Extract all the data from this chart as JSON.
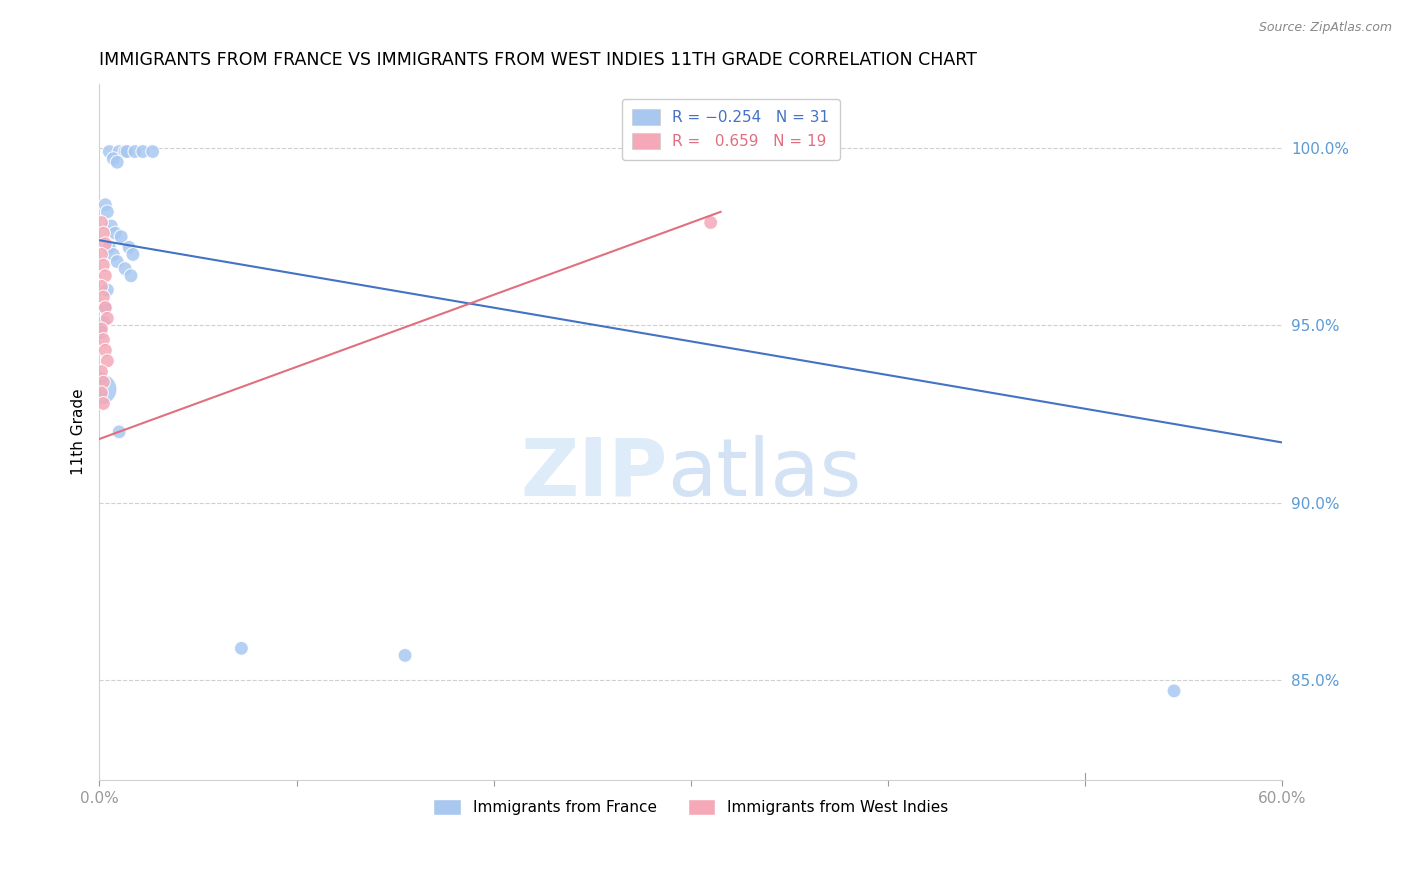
{
  "title": "IMMIGRANTS FROM FRANCE VS IMMIGRANTS FROM WEST INDIES 11TH GRADE CORRELATION CHART",
  "source": "Source: ZipAtlas.com",
  "ylabel": "11th Grade",
  "yticks_labels": [
    "100.0%",
    "95.0%",
    "90.0%",
    "85.0%"
  ],
  "ytick_vals": [
    1.0,
    0.95,
    0.9,
    0.85
  ],
  "xlim": [
    0.0,
    0.6
  ],
  "ylim": [
    0.822,
    1.018
  ],
  "blue_color": "#a8c8f0",
  "pink_color": "#f4a8b8",
  "blue_line_color": "#4472c4",
  "pink_line_color": "#e07080",
  "blue_line": [
    [
      0.0,
      0.974
    ],
    [
      0.6,
      0.917
    ]
  ],
  "pink_line": [
    [
      0.0,
      0.918
    ],
    [
      0.315,
      0.982
    ]
  ],
  "france_dots": [
    [
      0.005,
      0.999
    ],
    [
      0.01,
      0.999
    ],
    [
      0.013,
      0.999
    ],
    [
      0.014,
      0.999
    ],
    [
      0.018,
      0.999
    ],
    [
      0.022,
      0.999
    ],
    [
      0.027,
      0.999
    ],
    [
      0.007,
      0.997
    ],
    [
      0.009,
      0.996
    ],
    [
      0.003,
      0.984
    ],
    [
      0.004,
      0.982
    ],
    [
      0.006,
      0.978
    ],
    [
      0.008,
      0.976
    ],
    [
      0.011,
      0.975
    ],
    [
      0.005,
      0.972
    ],
    [
      0.007,
      0.97
    ],
    [
      0.009,
      0.968
    ],
    [
      0.013,
      0.966
    ],
    [
      0.016,
      0.964
    ],
    [
      0.015,
      0.972
    ],
    [
      0.017,
      0.97
    ],
    [
      0.004,
      0.96
    ],
    [
      0.003,
      0.955
    ],
    [
      0.002,
      0.951
    ],
    [
      0.001,
      0.948
    ],
    [
      0.001,
      0.932
    ],
    [
      0.01,
      0.92
    ],
    [
      0.072,
      0.859
    ],
    [
      0.155,
      0.857
    ],
    [
      0.545,
      0.847
    ],
    [
      0.001,
      0.935
    ]
  ],
  "france_sizes": [
    100,
    100,
    100,
    100,
    100,
    100,
    100,
    100,
    100,
    100,
    100,
    100,
    100,
    100,
    100,
    100,
    100,
    100,
    100,
    100,
    100,
    100,
    100,
    100,
    100,
    500,
    100,
    100,
    100,
    100,
    100
  ],
  "westindies_dots": [
    [
      0.001,
      0.979
    ],
    [
      0.002,
      0.976
    ],
    [
      0.003,
      0.973
    ],
    [
      0.001,
      0.97
    ],
    [
      0.002,
      0.967
    ],
    [
      0.003,
      0.964
    ],
    [
      0.001,
      0.961
    ],
    [
      0.002,
      0.958
    ],
    [
      0.003,
      0.955
    ],
    [
      0.004,
      0.952
    ],
    [
      0.001,
      0.949
    ],
    [
      0.002,
      0.946
    ],
    [
      0.003,
      0.943
    ],
    [
      0.004,
      0.94
    ],
    [
      0.001,
      0.937
    ],
    [
      0.002,
      0.934
    ],
    [
      0.001,
      0.931
    ],
    [
      0.002,
      0.928
    ],
    [
      0.31,
      0.979
    ]
  ],
  "westindies_sizes": [
    100,
    100,
    100,
    100,
    100,
    100,
    100,
    100,
    100,
    100,
    100,
    100,
    100,
    100,
    100,
    100,
    100,
    100,
    100
  ]
}
